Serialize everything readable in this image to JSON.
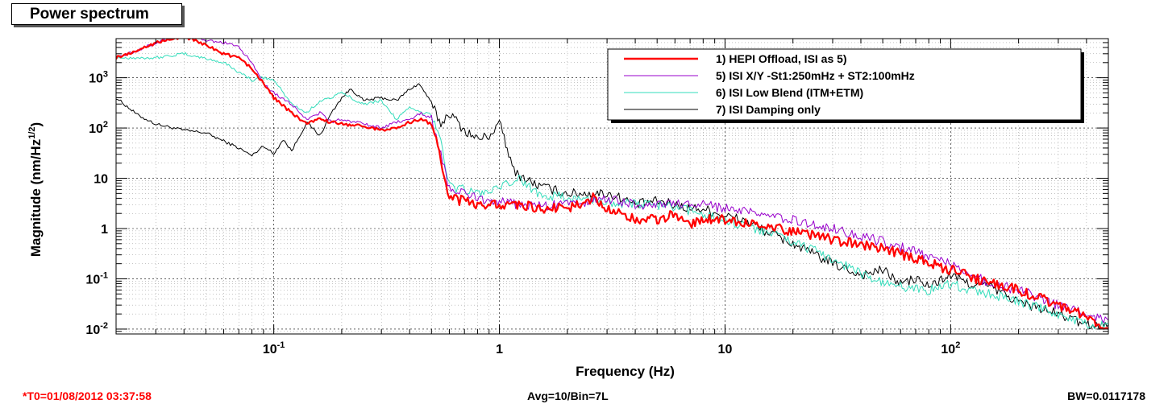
{
  "title": "Power spectrum",
  "footer": {
    "t0": "*T0=01/08/2012 03:37:58",
    "avg": "Avg=10/Bin=7L",
    "bw": "BW=0.0117178"
  },
  "chart_data": {
    "type": "line",
    "xlabel": "Frequency (Hz)",
    "ylabel_main": "Magnitude (nm/Hz",
    "ylabel_sup": "1/2",
    "ylabel_tail": ")",
    "xscale": "log",
    "yscale": "log",
    "xlim": [
      0.02,
      500
    ],
    "ylim": [
      0.008,
      6000
    ],
    "x_ticks": [
      {
        "base": "10",
        "exp": "-1",
        "value": 0.1
      },
      {
        "base": "1",
        "exp": "",
        "value": 1
      },
      {
        "base": "10",
        "exp": "",
        "value": 10
      },
      {
        "base": "10",
        "exp": "2",
        "value": 100
      }
    ],
    "y_ticks": [
      {
        "base": "10",
        "exp": "-2",
        "value": 0.01
      },
      {
        "base": "10",
        "exp": "-1",
        "value": 0.1
      },
      {
        "base": "1",
        "exp": "",
        "value": 1
      },
      {
        "base": "10",
        "exp": "",
        "value": 10
      },
      {
        "base": "10",
        "exp": "2",
        "value": 100
      },
      {
        "base": "10",
        "exp": "3",
        "value": 1000
      }
    ],
    "grid": true,
    "legend_position": "top-right",
    "series": [
      {
        "name": "7) ISI Damping only",
        "color": "#000000",
        "x": [
          0.02,
          0.025,
          0.03,
          0.04,
          0.05,
          0.06,
          0.07,
          0.08,
          0.09,
          0.1,
          0.11,
          0.12,
          0.14,
          0.16,
          0.18,
          0.2,
          0.22,
          0.25,
          0.3,
          0.35,
          0.4,
          0.44,
          0.47,
          0.5,
          0.55,
          0.6,
          0.7,
          0.8,
          0.9,
          1.0,
          1.05,
          1.1,
          1.2,
          1.5,
          2,
          2.5,
          3,
          3.5,
          4,
          5,
          6,
          7,
          8,
          10,
          12,
          15,
          20,
          30,
          40,
          50,
          60,
          70,
          80,
          100,
          120,
          150,
          200,
          300,
          400,
          500
        ],
        "y": [
          400,
          180,
          120,
          90,
          80,
          55,
          40,
          28,
          45,
          30,
          60,
          35,
          130,
          70,
          200,
          400,
          600,
          350,
          400,
          350,
          600,
          750,
          500,
          300,
          120,
          200,
          90,
          60,
          70,
          120,
          70,
          25,
          12,
          7,
          5,
          5,
          5,
          4,
          3,
          3.5,
          3,
          2.5,
          2.5,
          1.8,
          1.5,
          0.9,
          0.5,
          0.2,
          0.12,
          0.15,
          0.08,
          0.1,
          0.07,
          0.12,
          0.08,
          0.07,
          0.035,
          0.02,
          0.012,
          0.012
        ]
      },
      {
        "name": "6) ISI Low Blend (ITM+ETM)",
        "color": "#33ddbb",
        "x": [
          0.02,
          0.03,
          0.04,
          0.05,
          0.06,
          0.07,
          0.08,
          0.09,
          0.1,
          0.12,
          0.14,
          0.16,
          0.18,
          0.2,
          0.25,
          0.3,
          0.35,
          0.4,
          0.45,
          0.5,
          0.55,
          0.6,
          0.7,
          0.8,
          1.0,
          1.2,
          1.5,
          2,
          3,
          4,
          5,
          6,
          8,
          10,
          15,
          20,
          30,
          40,
          50,
          60,
          80,
          100,
          120,
          150,
          200,
          300,
          400,
          500
        ],
        "y": [
          2500,
          2500,
          3000,
          2400,
          2000,
          1300,
          900,
          1000,
          900,
          300,
          200,
          350,
          400,
          500,
          300,
          350,
          150,
          250,
          200,
          200,
          60,
          7,
          6,
          5,
          6,
          10,
          5,
          4,
          3.5,
          3,
          3,
          2.5,
          2,
          1.5,
          0.9,
          0.55,
          0.25,
          0.13,
          0.08,
          0.07,
          0.06,
          0.08,
          0.06,
          0.05,
          0.035,
          0.02,
          0.012,
          0.012
        ]
      },
      {
        "name": "5) ISI X/Y -St1:250mHz + ST2:100mHz",
        "color": "#9900cc",
        "x": [
          0.02,
          0.025,
          0.03,
          0.035,
          0.04,
          0.045,
          0.05,
          0.06,
          0.07,
          0.08,
          0.09,
          0.1,
          0.12,
          0.14,
          0.16,
          0.18,
          0.2,
          0.25,
          0.3,
          0.35,
          0.4,
          0.45,
          0.5,
          0.55,
          0.6,
          0.7,
          0.8,
          1.0,
          1.2,
          1.5,
          2,
          3,
          4,
          5,
          6,
          8,
          10,
          15,
          20,
          30,
          50,
          70,
          100,
          150,
          200,
          300,
          400,
          500
        ],
        "y": [
          2500,
          3500,
          5000,
          6000,
          6500,
          6000,
          5500,
          5000,
          4000,
          2000,
          800,
          500,
          300,
          150,
          200,
          130,
          150,
          120,
          100,
          130,
          150,
          200,
          150,
          30,
          6,
          5,
          4,
          3.5,
          3,
          2.8,
          3,
          4,
          3,
          3,
          3,
          3,
          2.5,
          1.8,
          1.5,
          1,
          0.55,
          0.35,
          0.2,
          0.08,
          0.06,
          0.03,
          0.02,
          0.015
        ]
      },
      {
        "name": "1) HEPI Offload, ISI as 5)",
        "color": "#ff0000",
        "bold": true,
        "x": [
          0.02,
          0.025,
          0.03,
          0.035,
          0.04,
          0.045,
          0.05,
          0.06,
          0.07,
          0.08,
          0.09,
          0.1,
          0.12,
          0.14,
          0.16,
          0.18,
          0.2,
          0.25,
          0.3,
          0.35,
          0.4,
          0.45,
          0.5,
          0.55,
          0.6,
          0.7,
          0.8,
          1.0,
          1.2,
          1.5,
          2,
          2.6,
          3,
          4,
          5,
          6,
          7,
          8,
          10,
          15,
          20,
          30,
          50,
          70,
          100,
          150,
          200,
          300,
          400,
          500
        ],
        "y": [
          2500,
          3500,
          5000,
          6000,
          6500,
          5500,
          4500,
          3000,
          2500,
          1500,
          800,
          400,
          200,
          120,
          150,
          130,
          120,
          110,
          90,
          100,
          130,
          150,
          120,
          25,
          4,
          3.5,
          3,
          3,
          3,
          2.5,
          2.5,
          4,
          2.5,
          1.5,
          1.5,
          2,
          1.2,
          1.5,
          1.5,
          1.1,
          0.9,
          0.6,
          0.4,
          0.25,
          0.15,
          0.08,
          0.06,
          0.03,
          0.018,
          0.01
        ]
      }
    ]
  }
}
